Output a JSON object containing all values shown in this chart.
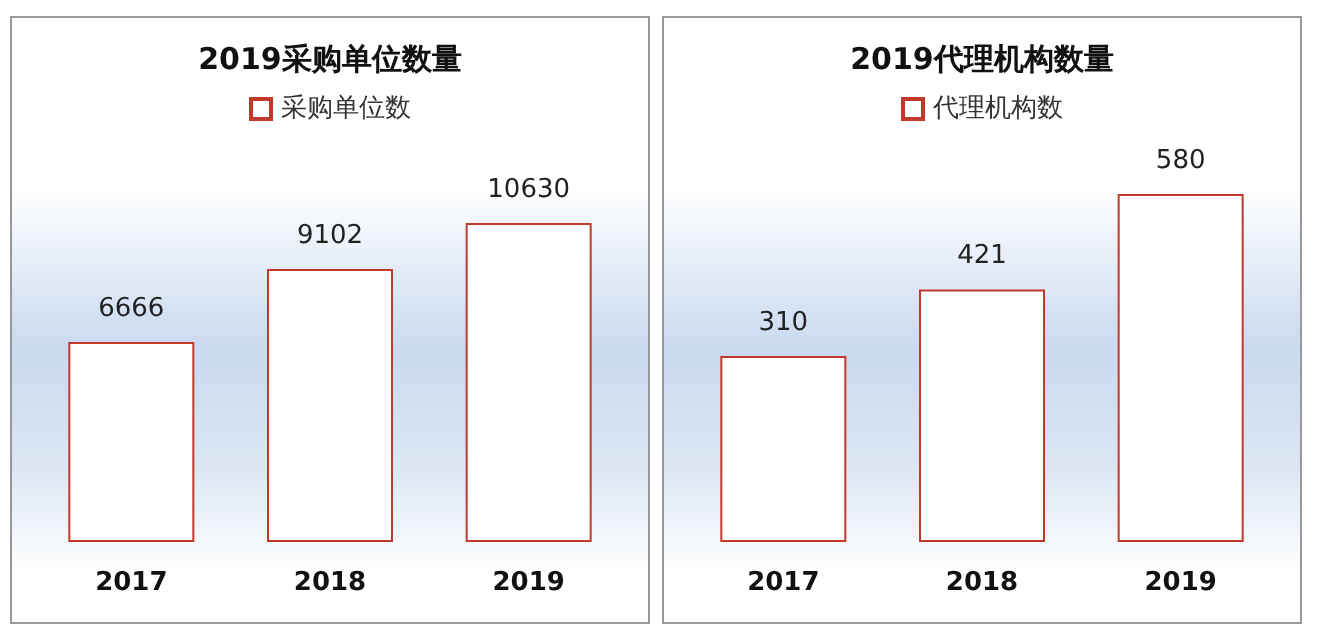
{
  "chart_data": [
    {
      "type": "bar",
      "title": "2019采购单位数量",
      "categories": [
        "2017",
        "2018",
        "2019"
      ],
      "series": [
        {
          "name": "采购单位数",
          "color": "#c0392b",
          "values": [
            6666,
            9102,
            10630
          ]
        }
      ],
      "data_labels": true,
      "legend": "top"
    },
    {
      "type": "bar",
      "title": "2019代理机构数量",
      "categories": [
        "2017",
        "2018",
        "2019"
      ],
      "series": [
        {
          "name": "代理机构数",
          "color": "#c0392b",
          "values": [
            310,
            421,
            580
          ]
        }
      ],
      "data_labels": true,
      "legend": "top"
    }
  ]
}
